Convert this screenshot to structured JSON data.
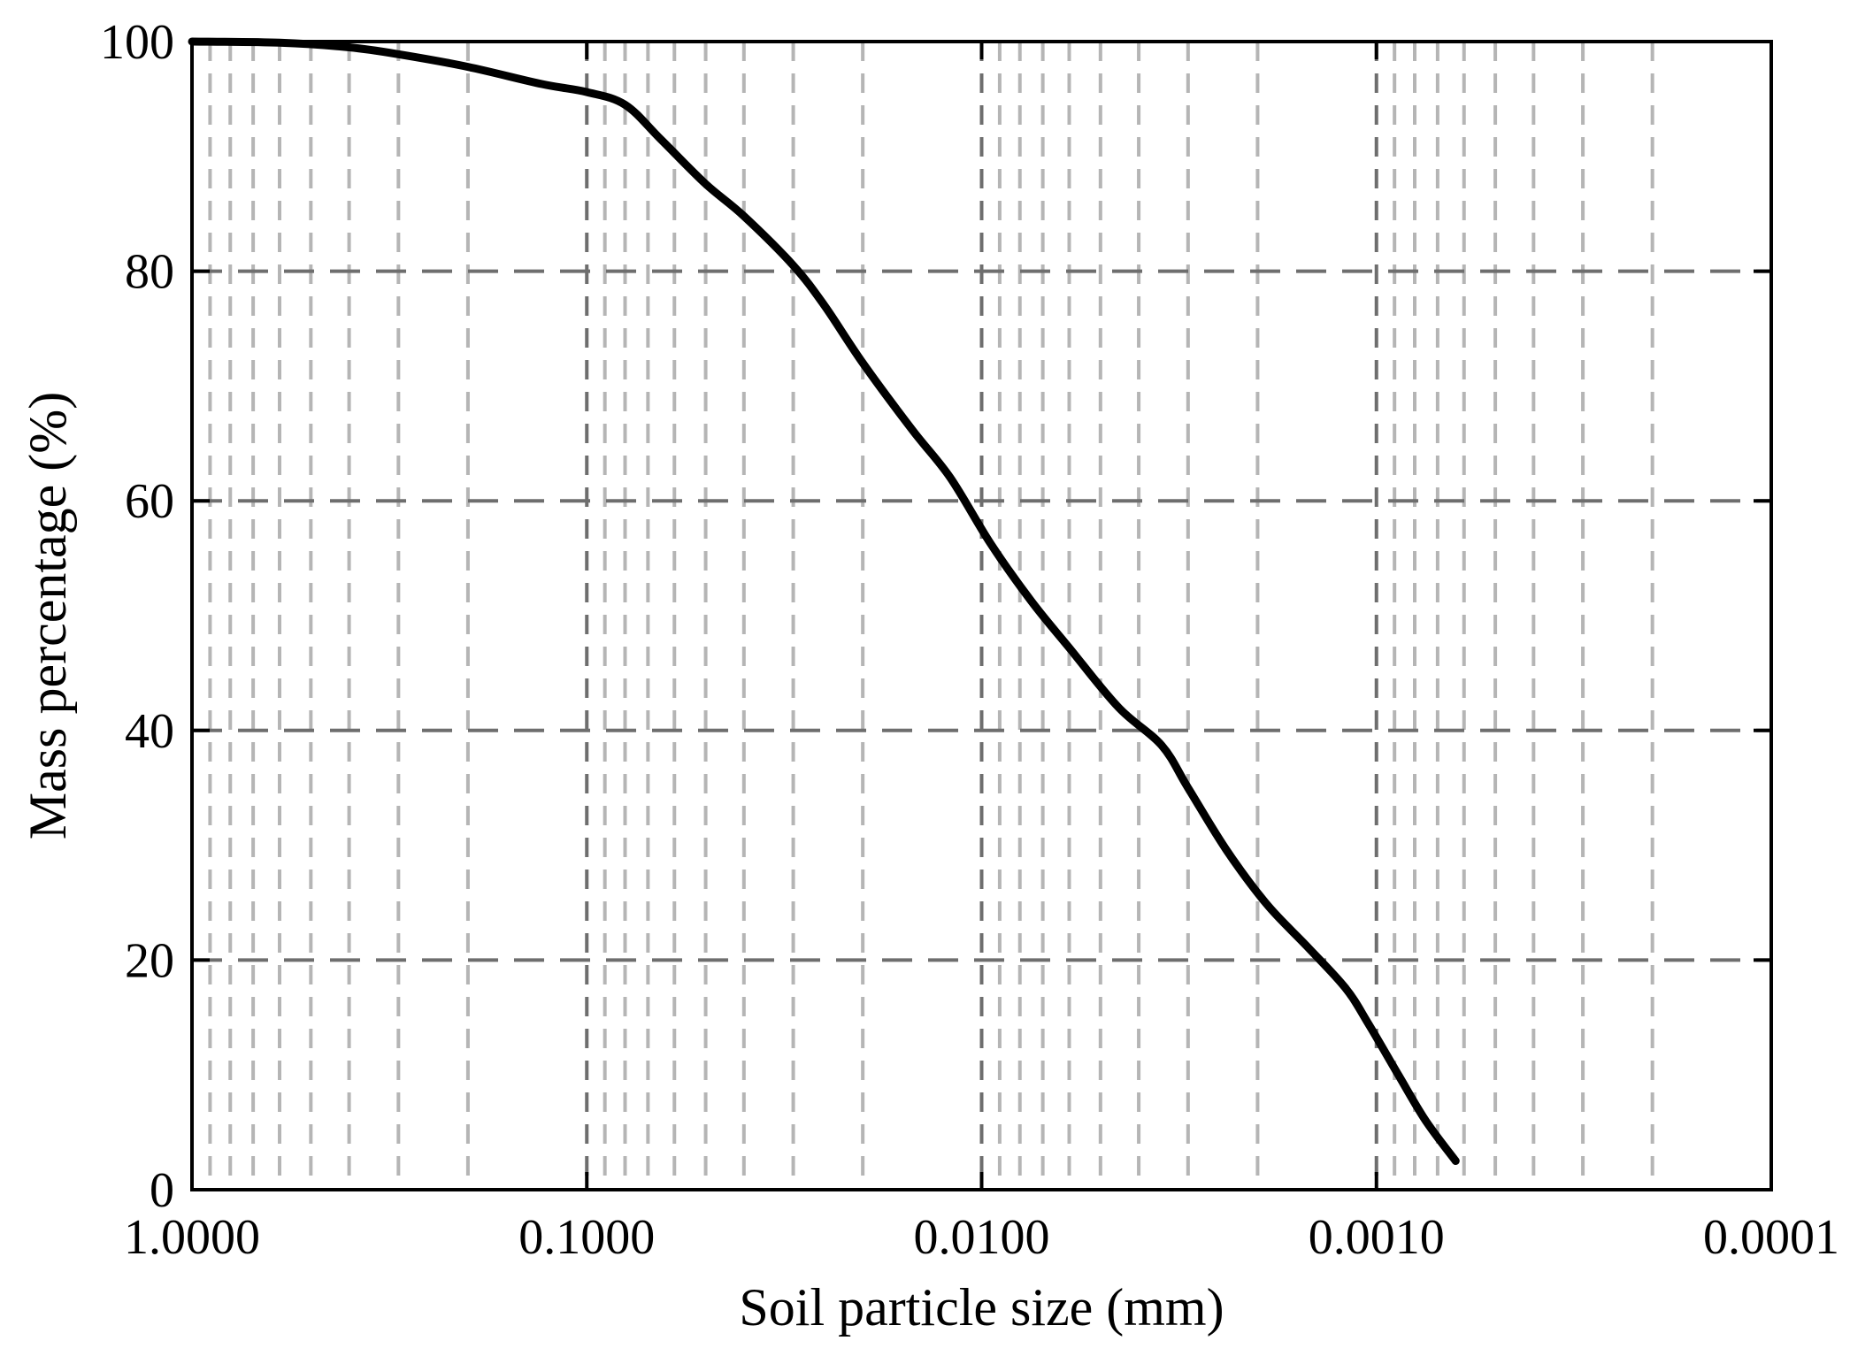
{
  "chart_data": {
    "type": "line",
    "title": "",
    "xlabel": "Soil particle size (mm)",
    "ylabel": "Mass percentage (%)",
    "x_scale": "log",
    "x_reversed": true,
    "xlim": [
      1.0,
      0.0001
    ],
    "ylim": [
      0,
      100
    ],
    "x_ticks": [
      1.0,
      0.1,
      0.01,
      0.001,
      0.0001
    ],
    "x_tick_labels": [
      "1.0000",
      "0.1000",
      "0.0100",
      "0.0010",
      "0.0001"
    ],
    "y_ticks": [
      0,
      20,
      40,
      60,
      80,
      100
    ],
    "y_tick_labels": [
      "0",
      "20",
      "40",
      "60",
      "80",
      "100"
    ],
    "grid": true,
    "grid_style": "dashed",
    "series": [
      {
        "color": "#000000",
        "x": [
          1.0,
          0.6,
          0.4,
          0.3,
          0.2,
          0.13,
          0.1,
          0.08,
          0.065,
          0.05,
          0.04,
          0.03,
          0.025,
          0.02,
          0.015,
          0.012,
          0.0095,
          0.0075,
          0.006,
          0.0045,
          0.0035,
          0.003,
          0.0024,
          0.0019,
          0.0015,
          0.0012,
          0.00105,
          0.00088,
          0.00075,
          0.00063
        ],
        "y": [
          100,
          99.9,
          99.5,
          98.9,
          97.8,
          96.3,
          95.6,
          94.5,
          91.5,
          87.6,
          84.8,
          80.5,
          77,
          72,
          66.2,
          62,
          56.3,
          51.3,
          47.2,
          42,
          38.7,
          35,
          29.6,
          24.9,
          21.2,
          17.6,
          14.5,
          10,
          6,
          2.5
        ]
      }
    ]
  }
}
